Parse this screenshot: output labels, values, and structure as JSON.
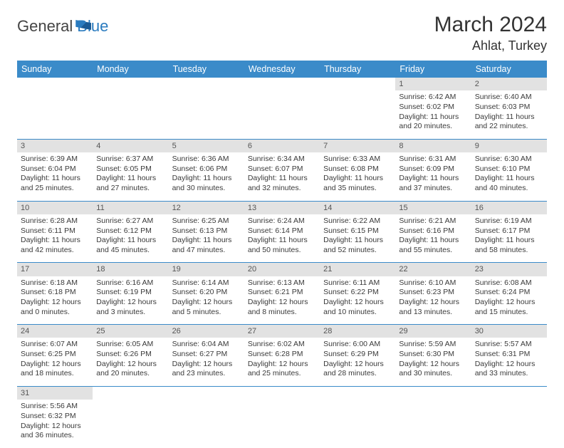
{
  "brand": {
    "part1": "General",
    "part2": "Blue"
  },
  "title": "March 2024",
  "location": "Ahlat, Turkey",
  "colors": {
    "header_bg": "#3b8bc9",
    "header_text": "#ffffff",
    "daynum_bg": "#e2e2e2",
    "row_divider": "#3b8bc9",
    "brand_blue": "#2a7bbf"
  },
  "day_labels": [
    "Sunday",
    "Monday",
    "Tuesday",
    "Wednesday",
    "Thursday",
    "Friday",
    "Saturday"
  ],
  "weeks": [
    [
      null,
      null,
      null,
      null,
      null,
      {
        "d": "1",
        "sr": "6:42 AM",
        "ss": "6:02 PM",
        "dl": "11 hours and 20 minutes."
      },
      {
        "d": "2",
        "sr": "6:40 AM",
        "ss": "6:03 PM",
        "dl": "11 hours and 22 minutes."
      }
    ],
    [
      {
        "d": "3",
        "sr": "6:39 AM",
        "ss": "6:04 PM",
        "dl": "11 hours and 25 minutes."
      },
      {
        "d": "4",
        "sr": "6:37 AM",
        "ss": "6:05 PM",
        "dl": "11 hours and 27 minutes."
      },
      {
        "d": "5",
        "sr": "6:36 AM",
        "ss": "6:06 PM",
        "dl": "11 hours and 30 minutes."
      },
      {
        "d": "6",
        "sr": "6:34 AM",
        "ss": "6:07 PM",
        "dl": "11 hours and 32 minutes."
      },
      {
        "d": "7",
        "sr": "6:33 AM",
        "ss": "6:08 PM",
        "dl": "11 hours and 35 minutes."
      },
      {
        "d": "8",
        "sr": "6:31 AM",
        "ss": "6:09 PM",
        "dl": "11 hours and 37 minutes."
      },
      {
        "d": "9",
        "sr": "6:30 AM",
        "ss": "6:10 PM",
        "dl": "11 hours and 40 minutes."
      }
    ],
    [
      {
        "d": "10",
        "sr": "6:28 AM",
        "ss": "6:11 PM",
        "dl": "11 hours and 42 minutes."
      },
      {
        "d": "11",
        "sr": "6:27 AM",
        "ss": "6:12 PM",
        "dl": "11 hours and 45 minutes."
      },
      {
        "d": "12",
        "sr": "6:25 AM",
        "ss": "6:13 PM",
        "dl": "11 hours and 47 minutes."
      },
      {
        "d": "13",
        "sr": "6:24 AM",
        "ss": "6:14 PM",
        "dl": "11 hours and 50 minutes."
      },
      {
        "d": "14",
        "sr": "6:22 AM",
        "ss": "6:15 PM",
        "dl": "11 hours and 52 minutes."
      },
      {
        "d": "15",
        "sr": "6:21 AM",
        "ss": "6:16 PM",
        "dl": "11 hours and 55 minutes."
      },
      {
        "d": "16",
        "sr": "6:19 AM",
        "ss": "6:17 PM",
        "dl": "11 hours and 58 minutes."
      }
    ],
    [
      {
        "d": "17",
        "sr": "6:18 AM",
        "ss": "6:18 PM",
        "dl": "12 hours and 0 minutes."
      },
      {
        "d": "18",
        "sr": "6:16 AM",
        "ss": "6:19 PM",
        "dl": "12 hours and 3 minutes."
      },
      {
        "d": "19",
        "sr": "6:14 AM",
        "ss": "6:20 PM",
        "dl": "12 hours and 5 minutes."
      },
      {
        "d": "20",
        "sr": "6:13 AM",
        "ss": "6:21 PM",
        "dl": "12 hours and 8 minutes."
      },
      {
        "d": "21",
        "sr": "6:11 AM",
        "ss": "6:22 PM",
        "dl": "12 hours and 10 minutes."
      },
      {
        "d": "22",
        "sr": "6:10 AM",
        "ss": "6:23 PM",
        "dl": "12 hours and 13 minutes."
      },
      {
        "d": "23",
        "sr": "6:08 AM",
        "ss": "6:24 PM",
        "dl": "12 hours and 15 minutes."
      }
    ],
    [
      {
        "d": "24",
        "sr": "6:07 AM",
        "ss": "6:25 PM",
        "dl": "12 hours and 18 minutes."
      },
      {
        "d": "25",
        "sr": "6:05 AM",
        "ss": "6:26 PM",
        "dl": "12 hours and 20 minutes."
      },
      {
        "d": "26",
        "sr": "6:04 AM",
        "ss": "6:27 PM",
        "dl": "12 hours and 23 minutes."
      },
      {
        "d": "27",
        "sr": "6:02 AM",
        "ss": "6:28 PM",
        "dl": "12 hours and 25 minutes."
      },
      {
        "d": "28",
        "sr": "6:00 AM",
        "ss": "6:29 PM",
        "dl": "12 hours and 28 minutes."
      },
      {
        "d": "29",
        "sr": "5:59 AM",
        "ss": "6:30 PM",
        "dl": "12 hours and 30 minutes."
      },
      {
        "d": "30",
        "sr": "5:57 AM",
        "ss": "6:31 PM",
        "dl": "12 hours and 33 minutes."
      }
    ],
    [
      {
        "d": "31",
        "sr": "5:56 AM",
        "ss": "6:32 PM",
        "dl": "12 hours and 36 minutes."
      },
      null,
      null,
      null,
      null,
      null,
      null
    ]
  ],
  "labels": {
    "sunrise": "Sunrise:",
    "sunset": "Sunset:",
    "daylight": "Daylight:"
  }
}
